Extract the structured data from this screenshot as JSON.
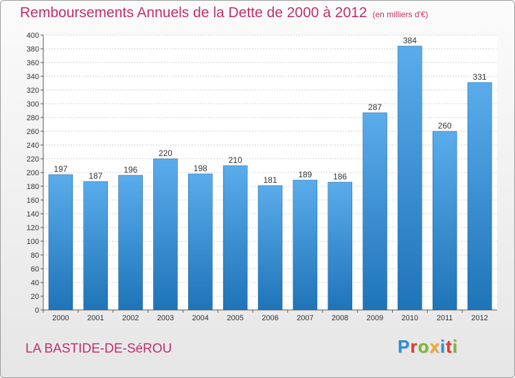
{
  "header": {
    "title": "Remboursements Annuels de la Dette de 2000 à 2012",
    "unit": "(en milliers d'€)"
  },
  "footer": {
    "city": "LA BASTIDE-DE-SéROU",
    "logo": "Proxiti",
    "logo_colors": [
      "#2e8fd8",
      "#e0392b",
      "#7cb82f",
      "#f5a623",
      "#2e8fd8",
      "#e0392b",
      "#7cb82f"
    ]
  },
  "chart_data": {
    "type": "bar",
    "title": "Remboursements Annuels de la Dette de 2000 à 2012",
    "xlabel": "",
    "ylabel": "",
    "categories": [
      "2000",
      "2001",
      "2002",
      "2003",
      "2004",
      "2005",
      "2006",
      "2007",
      "2008",
      "2009",
      "2010",
      "2011",
      "2012"
    ],
    "values": [
      197,
      187,
      196,
      220,
      198,
      210,
      181,
      189,
      186,
      287,
      384,
      260,
      331
    ],
    "ylim": [
      0,
      400
    ],
    "ytick_step": 20,
    "grid": true,
    "bar_color_top": "#5aaceb",
    "bar_color_bottom": "#1f74b8"
  }
}
